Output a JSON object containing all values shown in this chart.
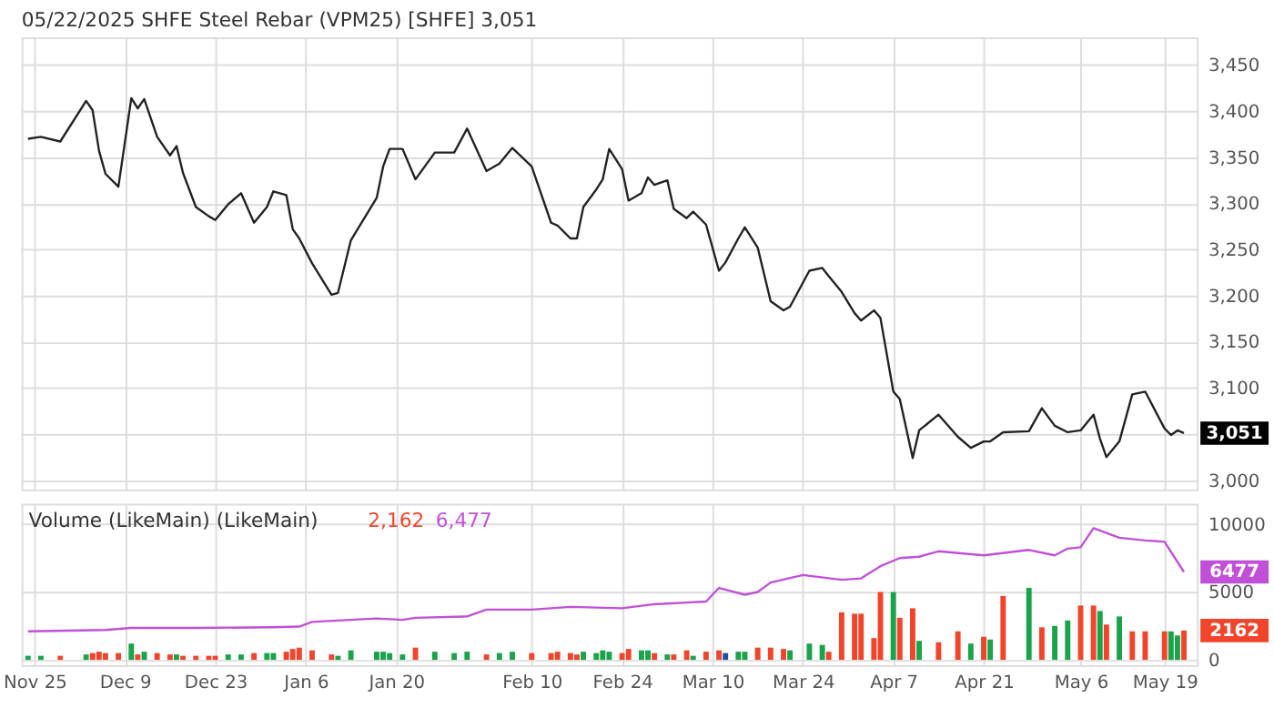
{
  "chart_data": [
    {
      "type": "line",
      "title": "05/22/2025 SHFE Steel Rebar (VPM25) [SHFE] 3,051",
      "x": [
        "2024-11-24",
        "2024-11-26",
        "2024-11-29",
        "2024-12-03",
        "2024-12-04",
        "2024-12-05",
        "2024-12-06",
        "2024-12-08",
        "2024-12-10",
        "2024-12-11",
        "2024-12-12",
        "2024-12-14",
        "2024-12-16",
        "2024-12-17",
        "2024-12-18",
        "2024-12-20",
        "2024-12-22",
        "2024-12-23",
        "2024-12-25",
        "2024-12-27",
        "2024-12-29",
        "2024-12-31",
        "2025-01-01",
        "2025-01-03",
        "2025-01-04",
        "2025-01-05",
        "2025-01-07",
        "2025-01-10",
        "2025-01-11",
        "2025-01-13",
        "2025-01-17",
        "2025-01-18",
        "2025-01-19",
        "2025-01-21",
        "2025-01-23",
        "2025-01-26",
        "2025-01-29",
        "2025-01-31",
        "2025-02-03",
        "2025-02-05",
        "2025-02-07",
        "2025-02-10",
        "2025-02-13",
        "2025-02-14",
        "2025-02-16",
        "2025-02-17",
        "2025-02-18",
        "2025-02-20",
        "2025-02-21",
        "2025-02-22",
        "2025-02-24",
        "2025-02-25",
        "2025-02-27",
        "2025-02-28",
        "2025-03-01",
        "2025-03-03",
        "2025-03-04",
        "2025-03-06",
        "2025-03-07",
        "2025-03-09",
        "2025-03-11",
        "2025-03-12",
        "2025-03-14",
        "2025-03-15",
        "2025-03-17",
        "2025-03-19",
        "2025-03-21",
        "2025-03-22",
        "2025-03-25",
        "2025-03-27",
        "2025-03-28",
        "2025-03-30",
        "2025-04-01",
        "2025-04-02",
        "2025-04-04",
        "2025-04-05",
        "2025-04-07",
        "2025-04-08",
        "2025-04-10",
        "2025-04-11",
        "2025-04-14",
        "2025-04-17",
        "2025-04-19",
        "2025-04-21",
        "2025-04-22",
        "2025-04-24",
        "2025-04-28",
        "2025-04-30",
        "2025-05-02",
        "2025-05-04",
        "2025-05-06",
        "2025-05-08",
        "2025-05-09",
        "2025-05-10",
        "2025-05-12",
        "2025-05-14",
        "2025-05-16",
        "2025-05-19",
        "2025-05-20",
        "2025-05-21",
        "2025-05-22"
      ],
      "series": [
        {
          "color": "#222222",
          "values": [
            3370,
            3372,
            3367,
            3411,
            3401,
            3357,
            3332,
            3318,
            3414,
            3403,
            3413,
            3372,
            3352,
            3362,
            3333,
            3296,
            3286,
            3282,
            3299,
            3311,
            3279,
            3296,
            3313,
            3309,
            3272,
            3262,
            3235,
            3201,
            3203,
            3260,
            3306,
            3340,
            3359,
            3359,
            3326,
            3355,
            3355,
            3381,
            3335,
            3343,
            3360,
            3340,
            3279,
            3276,
            3262,
            3262,
            3296,
            3315,
            3326,
            3359,
            3337,
            3303,
            3311,
            3328,
            3320,
            3325,
            3294,
            3284,
            3291,
            3277,
            3227,
            3236,
            3262,
            3274,
            3252,
            3194,
            3184,
            3188,
            3227,
            3230,
            3221,
            3204,
            3181,
            3173,
            3184,
            3176,
            3096,
            3088,
            3024,
            3054,
            3071,
            3047,
            3035,
            3042,
            3042,
            3052,
            3053,
            3078,
            3059,
            3052,
            3054,
            3071,
            3045,
            3025,
            3042,
            3093,
            3096,
            3056,
            3049,
            3054,
            3051
          ]
        }
      ],
      "xlim": [
        "2024-11-23",
        "2025-05-24"
      ],
      "xticks": [
        {
          "value": "2024-11-25",
          "label": null
        },
        {
          "value": "2024-12-09",
          "label": null
        },
        {
          "value": "2024-12-23",
          "label": null
        },
        {
          "value": "2025-01-06",
          "label": null
        },
        {
          "value": "2025-01-20",
          "label": null
        },
        {
          "value": "2025-02-10",
          "label": null
        },
        {
          "value": "2025-02-24",
          "label": null
        },
        {
          "value": "2025-03-10",
          "label": null
        },
        {
          "value": "2025-03-24",
          "label": null
        },
        {
          "value": "2025-04-07",
          "label": null
        },
        {
          "value": "2025-04-21",
          "label": null
        },
        {
          "value": "2025-05-06",
          "label": null
        },
        {
          "value": "2025-05-19",
          "label": null
        }
      ],
      "ylim": [
        2990,
        3480
      ],
      "yticks": [
        {
          "value": 3000,
          "label": "3,000"
        },
        {
          "value": 3050,
          "label": null
        },
        {
          "value": 3100,
          "label": "3,100"
        },
        {
          "value": 3150,
          "label": "3,150"
        },
        {
          "value": 3200,
          "label": "3,200"
        },
        {
          "value": 3250,
          "label": "3,250"
        },
        {
          "value": 3300,
          "label": "3,300"
        },
        {
          "value": 3350,
          "label": "3,350"
        },
        {
          "value": 3400,
          "label": "3,400"
        },
        {
          "value": 3450,
          "label": "3,450"
        }
      ],
      "annotations": [
        "3,051"
      ],
      "grid": true,
      "tick_labels": "y"
    },
    {
      "type": "bar",
      "title": "Volume (LikeMain)  (LikeMain)",
      "x": [
        "2024-11-24",
        "2024-11-26",
        "2024-11-29",
        "2024-12-03",
        "2024-12-04",
        "2024-12-05",
        "2024-12-06",
        "2024-12-08",
        "2024-12-10",
        "2024-12-11",
        "2024-12-12",
        "2024-12-14",
        "2024-12-16",
        "2024-12-17",
        "2024-12-18",
        "2024-12-20",
        "2024-12-22",
        "2024-12-23",
        "2024-12-25",
        "2024-12-27",
        "2024-12-29",
        "2024-12-31",
        "2025-01-01",
        "2025-01-03",
        "2025-01-04",
        "2025-01-05",
        "2025-01-07",
        "2025-01-10",
        "2025-01-11",
        "2025-01-13",
        "2025-01-17",
        "2025-01-18",
        "2025-01-19",
        "2025-01-21",
        "2025-01-23",
        "2025-01-26",
        "2025-01-29",
        "2025-01-31",
        "2025-02-03",
        "2025-02-05",
        "2025-02-07",
        "2025-02-10",
        "2025-02-13",
        "2025-02-14",
        "2025-02-16",
        "2025-02-17",
        "2025-02-18",
        "2025-02-20",
        "2025-02-21",
        "2025-02-22",
        "2025-02-24",
        "2025-02-25",
        "2025-02-27",
        "2025-02-28",
        "2025-03-01",
        "2025-03-03",
        "2025-03-04",
        "2025-03-06",
        "2025-03-07",
        "2025-03-09",
        "2025-03-11",
        "2025-03-12",
        "2025-03-14",
        "2025-03-15",
        "2025-03-17",
        "2025-03-19",
        "2025-03-21",
        "2025-03-22",
        "2025-03-25",
        "2025-03-27",
        "2025-03-28",
        "2025-03-30",
        "2025-04-01",
        "2025-04-02",
        "2025-04-04",
        "2025-04-05",
        "2025-04-07",
        "2025-04-08",
        "2025-04-10",
        "2025-04-11",
        "2025-04-14",
        "2025-04-17",
        "2025-04-19",
        "2025-04-21",
        "2025-04-22",
        "2025-04-24",
        "2025-04-28",
        "2025-04-30",
        "2025-05-02",
        "2025-05-04",
        "2025-05-06",
        "2025-05-08",
        "2025-05-09",
        "2025-05-10",
        "2025-05-12",
        "2025-05-14",
        "2025-05-16",
        "2025-05-19",
        "2025-05-20",
        "2025-05-21",
        "2025-05-22"
      ],
      "series": [
        {
          "color": "#f0452b",
          "values": [
            300,
            300,
            300,
            400,
            500,
            600,
            500,
            500,
            1200,
            400,
            600,
            500,
            400,
            400,
            300,
            300,
            300,
            300,
            400,
            400,
            500,
            500,
            500,
            600,
            800,
            900,
            700,
            400,
            300,
            700,
            600,
            600,
            500,
            400,
            900,
            600,
            500,
            600,
            400,
            500,
            600,
            500,
            500,
            600,
            500,
            400,
            600,
            500,
            700,
            600,
            500,
            800,
            700,
            700,
            500,
            400,
            400,
            700,
            300,
            600,
            700,
            500,
            600,
            600,
            900,
            900,
            800,
            700,
            1200,
            1100,
            600,
            3500,
            3400,
            3400,
            1600,
            5000,
            5000,
            3100,
            3800,
            1400,
            1300,
            2100,
            1200,
            1700,
            1500,
            4700,
            5300,
            2400,
            2500,
            2900,
            4000,
            4000,
            3600,
            2600,
            3200,
            2100,
            2100,
            2100,
            2100,
            1800,
            2162
          ],
          "colors": [
            "#1aa34a",
            "#1aa34a",
            "#f0452b",
            "#1aa34a",
            "#f0452b",
            "#f0452b",
            "#f0452b",
            "#f0452b",
            "#1aa34a",
            "#f0452b",
            "#1aa34a",
            "#f0452b",
            "#f0452b",
            "#1aa34a",
            "#f0452b",
            "#f0452b",
            "#f0452b",
            "#f0452b",
            "#1aa34a",
            "#1aa34a",
            "#f0452b",
            "#1aa34a",
            "#1aa34a",
            "#f0452b",
            "#f0452b",
            "#f0452b",
            "#f0452b",
            "#f0452b",
            "#1aa34a",
            "#1aa34a",
            "#1aa34a",
            "#1aa34a",
            "#1aa34a",
            "#1aa34a",
            "#f0452b",
            "#1aa34a",
            "#1aa34a",
            "#1aa34a",
            "#f0452b",
            "#1aa34a",
            "#1aa34a",
            "#f0452b",
            "#f0452b",
            "#f0452b",
            "#f0452b",
            "#f0452b",
            "#1aa34a",
            "#1aa34a",
            "#1aa34a",
            "#1aa34a",
            "#f0452b",
            "#f0452b",
            "#1aa34a",
            "#1aa34a",
            "#f0452b",
            "#1aa34a",
            "#f0452b",
            "#f0452b",
            "#1aa34a",
            "#f0452b",
            "#f0452b",
            "#1f4fa8",
            "#1aa34a",
            "#1aa34a",
            "#f0452b",
            "#f0452b",
            "#f0452b",
            "#1aa34a",
            "#1aa34a",
            "#1aa34a",
            "#f0452b",
            "#f0452b",
            "#f0452b",
            "#f0452b",
            "#f0452b",
            "#f0452b",
            "#1aa34a",
            "#f0452b",
            "#f0452b",
            "#1aa34a",
            "#f0452b",
            "#f0452b",
            "#1aa34a",
            "#f0452b",
            "#1aa34a",
            "#f0452b",
            "#1aa34a",
            "#f0452b",
            "#1aa34a",
            "#1aa34a",
            "#f0452b",
            "#f0452b",
            "#1aa34a",
            "#f0452b",
            "#1aa34a",
            "#f0452b",
            "#f0452b",
            "#f0452b",
            "#1aa34a",
            "#1aa34a",
            "#f0452b"
          ]
        },
        {
          "type": "line",
          "color": "#c050d8",
          "x": [
            "2024-11-24",
            "2024-12-06",
            "2024-12-10",
            "2024-12-20",
            "2025-01-01",
            "2025-01-05",
            "2025-01-07",
            "2025-01-17",
            "2025-01-21",
            "2025-01-23",
            "2025-01-31",
            "2025-02-03",
            "2025-02-10",
            "2025-02-16",
            "2025-02-24",
            "2025-03-01",
            "2025-03-09",
            "2025-03-11",
            "2025-03-15",
            "2025-03-17",
            "2025-03-19",
            "2025-03-24",
            "2025-03-30",
            "2025-04-02",
            "2025-04-05",
            "2025-04-08",
            "2025-04-11",
            "2025-04-14",
            "2025-04-21",
            "2025-04-28",
            "2025-05-02",
            "2025-05-04",
            "2025-05-06",
            "2025-05-08",
            "2025-05-12",
            "2025-05-16",
            "2025-05-19",
            "2025-05-22"
          ],
          "values": [
            2100,
            2200,
            2350,
            2350,
            2400,
            2450,
            2800,
            3050,
            2950,
            3100,
            3200,
            3700,
            3700,
            3900,
            3800,
            4100,
            4300,
            5300,
            4800,
            5000,
            5700,
            6250,
            5900,
            6000,
            6900,
            7500,
            7600,
            8000,
            7700,
            8100,
            7700,
            8200,
            8300,
            9700,
            9000,
            8800,
            8700,
            6477
          ]
        }
      ],
      "xlim": [
        "2024-11-23",
        "2025-05-24"
      ],
      "xticks": [
        {
          "value": "2024-11-25",
          "label": "Nov 25"
        },
        {
          "value": "2024-12-09",
          "label": "Dec 9"
        },
        {
          "value": "2024-12-23",
          "label": "Dec 23"
        },
        {
          "value": "2025-01-06",
          "label": "Jan 6"
        },
        {
          "value": "2025-01-20",
          "label": "Jan 20"
        },
        {
          "value": "2025-02-10",
          "label": "Feb 10"
        },
        {
          "value": "2025-02-24",
          "label": "Feb 24"
        },
        {
          "value": "2025-03-10",
          "label": "Mar 10"
        },
        {
          "value": "2025-03-24",
          "label": "Mar 24"
        },
        {
          "value": "2025-04-07",
          "label": "Apr 7"
        },
        {
          "value": "2025-04-21",
          "label": "Apr 21"
        },
        {
          "value": "2025-05-06",
          "label": "May 6"
        },
        {
          "value": "2025-05-19",
          "label": "May 19"
        }
      ],
      "ylim": [
        -400,
        11500
      ],
      "yticks": [
        0,
        5000,
        10000
      ],
      "annotations": [
        "2,162",
        "6,477",
        "2162",
        "6477"
      ],
      "grid": true
    }
  ]
}
